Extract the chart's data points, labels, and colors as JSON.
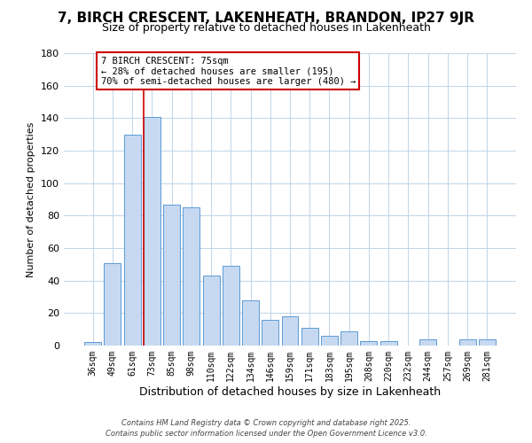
{
  "title": "7, BIRCH CRESCENT, LAKENHEATH, BRANDON, IP27 9JR",
  "subtitle": "Size of property relative to detached houses in Lakenheath",
  "xlabel": "Distribution of detached houses by size in Lakenheath",
  "ylabel": "Number of detached properties",
  "categories": [
    "36sqm",
    "49sqm",
    "61sqm",
    "73sqm",
    "85sqm",
    "98sqm",
    "110sqm",
    "122sqm",
    "134sqm",
    "146sqm",
    "159sqm",
    "171sqm",
    "183sqm",
    "195sqm",
    "208sqm",
    "220sqm",
    "232sqm",
    "244sqm",
    "257sqm",
    "269sqm",
    "281sqm"
  ],
  "values": [
    2,
    51,
    130,
    141,
    87,
    85,
    43,
    49,
    28,
    16,
    18,
    11,
    6,
    9,
    3,
    3,
    0,
    4,
    0,
    4,
    4
  ],
  "bar_color": "#c6d9f1",
  "bar_edge_color": "#5b9bd5",
  "vline_color": "#cc0000",
  "ylim": [
    0,
    180
  ],
  "yticks": [
    0,
    20,
    40,
    60,
    80,
    100,
    120,
    140,
    160,
    180
  ],
  "annotation_text": "7 BIRCH CRESCENT: 75sqm\n← 28% of detached houses are smaller (195)\n70% of semi-detached houses are larger (480) →",
  "annotation_box_color": "#ffffff",
  "annotation_box_edgecolor": "#cc0000",
  "footer_line1": "Contains HM Land Registry data © Crown copyright and database right 2025.",
  "footer_line2": "Contains public sector information licensed under the Open Government Licence v3.0.",
  "background_color": "#ffffff",
  "grid_color": "#c0d4e8",
  "title_fontsize": 11,
  "subtitle_fontsize": 9
}
